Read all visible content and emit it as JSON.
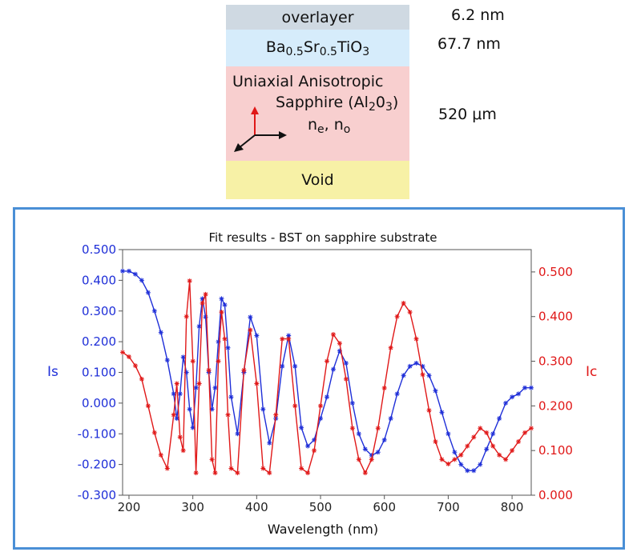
{
  "stack": {
    "layers": [
      {
        "label": "overlayer",
        "thickness": "6.2 nm",
        "color": "#cfd9e2"
      },
      {
        "label_main": "Ba",
        "sub1": "0.5",
        "mid": "Sr",
        "sub2": "0.5",
        "tail": "TiO",
        "sub3": "3",
        "thickness": "67.7 nm",
        "color": "#d6ecfb"
      },
      {
        "line1": "Uniaxial Anisotropic",
        "line2_a": "Sapphire (Al",
        "line2_sub1": "2",
        "line2_b": "0",
        "line2_sub2": "3",
        "line2_c": ")",
        "line3_a": "n",
        "line3_sub1": "e",
        "line3_b": ", n",
        "line3_sub2": "o",
        "thickness": "520 μm",
        "color": "#f8cfcf"
      },
      {
        "label": "Void",
        "thickness": "",
        "color": "#f7f1a6"
      }
    ]
  },
  "chart_data": {
    "type": "line",
    "title": "Fit results - BST on sapphire substrate",
    "xlabel": "Wavelength (nm)",
    "ylabel_left": "Is",
    "ylabel_right": "Ic",
    "xlim": [
      190,
      830
    ],
    "ylim_left": [
      -0.3,
      0.5
    ],
    "ylim_right": [
      0.0,
      0.55
    ],
    "x_ticks": [
      "200",
      "300",
      "400",
      "500",
      "600",
      "700",
      "800"
    ],
    "y_left_ticks": [
      "0.500",
      "0.400",
      "0.300",
      "0.200",
      "0.100",
      "0.000",
      "-0.100",
      "-0.200",
      "-0.300"
    ],
    "y_right_ticks": [
      "0.500",
      "0.400",
      "0.300",
      "0.200",
      "0.100",
      "0.000"
    ],
    "colors": {
      "Is": "#1f2fd8",
      "Ic": "#e01818"
    },
    "series": [
      {
        "name": "Is",
        "axis": "left",
        "x": [
          190,
          200,
          210,
          220,
          230,
          240,
          250,
          260,
          270,
          275,
          280,
          285,
          290,
          295,
          300,
          305,
          310,
          315,
          320,
          325,
          330,
          335,
          340,
          345,
          350,
          355,
          360,
          370,
          380,
          390,
          400,
          410,
          420,
          430,
          440,
          450,
          460,
          470,
          480,
          490,
          500,
          510,
          520,
          530,
          540,
          550,
          560,
          570,
          580,
          590,
          600,
          610,
          620,
          630,
          640,
          650,
          660,
          670,
          680,
          690,
          700,
          710,
          720,
          730,
          740,
          750,
          760,
          770,
          780,
          790,
          800,
          810,
          820,
          830
        ],
        "y": [
          0.43,
          0.43,
          0.42,
          0.4,
          0.36,
          0.3,
          0.23,
          0.14,
          0.03,
          -0.05,
          0.03,
          0.15,
          0.1,
          -0.02,
          -0.08,
          0.05,
          0.25,
          0.34,
          0.28,
          0.1,
          -0.02,
          0.05,
          0.2,
          0.34,
          0.32,
          0.18,
          0.02,
          -0.1,
          0.1,
          0.28,
          0.22,
          -0.02,
          -0.13,
          -0.05,
          0.12,
          0.22,
          0.12,
          -0.08,
          -0.14,
          -0.12,
          -0.05,
          0.02,
          0.11,
          0.17,
          0.13,
          0.0,
          -0.1,
          -0.15,
          -0.17,
          -0.16,
          -0.12,
          -0.05,
          0.03,
          0.09,
          0.12,
          0.13,
          0.12,
          0.09,
          0.04,
          -0.03,
          -0.1,
          -0.16,
          -0.2,
          -0.22,
          -0.22,
          -0.2,
          -0.15,
          -0.1,
          -0.05,
          0.0,
          0.02,
          0.03,
          0.05,
          0.05
        ]
      },
      {
        "name": "Ic",
        "axis": "right",
        "x": [
          190,
          200,
          210,
          220,
          230,
          240,
          250,
          260,
          270,
          275,
          280,
          285,
          290,
          295,
          300,
          305,
          310,
          315,
          320,
          325,
          330,
          335,
          340,
          345,
          350,
          355,
          360,
          370,
          380,
          390,
          400,
          410,
          420,
          430,
          440,
          450,
          460,
          470,
          480,
          490,
          500,
          510,
          520,
          530,
          540,
          550,
          560,
          570,
          580,
          590,
          600,
          610,
          620,
          630,
          640,
          650,
          660,
          670,
          680,
          690,
          700,
          710,
          720,
          730,
          740,
          750,
          760,
          770,
          780,
          790,
          800,
          810,
          820,
          830
        ],
        "y": [
          0.32,
          0.31,
          0.29,
          0.26,
          0.2,
          0.14,
          0.09,
          0.06,
          0.18,
          0.25,
          0.13,
          0.1,
          0.4,
          0.48,
          0.3,
          0.05,
          0.25,
          0.43,
          0.45,
          0.28,
          0.08,
          0.05,
          0.3,
          0.41,
          0.35,
          0.18,
          0.06,
          0.05,
          0.28,
          0.37,
          0.25,
          0.06,
          0.05,
          0.18,
          0.35,
          0.35,
          0.2,
          0.06,
          0.05,
          0.1,
          0.2,
          0.3,
          0.36,
          0.34,
          0.26,
          0.15,
          0.08,
          0.05,
          0.08,
          0.15,
          0.24,
          0.33,
          0.4,
          0.43,
          0.41,
          0.35,
          0.27,
          0.19,
          0.12,
          0.08,
          0.07,
          0.08,
          0.09,
          0.11,
          0.13,
          0.15,
          0.14,
          0.11,
          0.09,
          0.08,
          0.1,
          0.12,
          0.14,
          0.15
        ]
      }
    ]
  }
}
